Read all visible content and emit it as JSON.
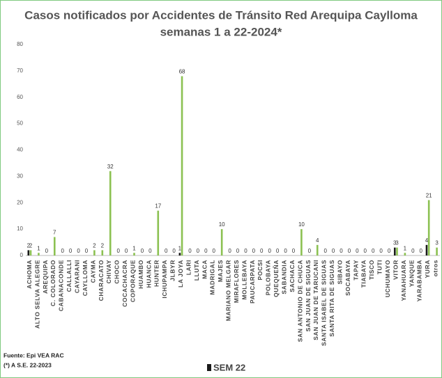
{
  "chart_data": {
    "type": "bar",
    "title": "Casos notificados  por Accidentes de Tránsito Red Arequipa Caylloma",
    "subtitle": "semanas 1 a 22-2024*",
    "source": "Fuente: Epi VEA RAC",
    "footnote": "(*) A S.E. 22-2023",
    "categories": [
      "ACHOMA",
      "ALTO SELVA ALEGRE",
      "AREQUIPA",
      "C. COLORADO",
      "CABANACONDE",
      "CALLALLI",
      "CAYARANI",
      "CAYLLOMA",
      "CAYMA",
      "CHARACATO",
      "CHIVAY",
      "CHOCO",
      "COCACHACRA",
      "COPORAQUE",
      "HUAMBO",
      "HUANCA",
      "HUNTER",
      "ICHUPAMPA",
      "JLBYR",
      "LA JOYA",
      "LARI",
      "LLUTA",
      "MACA",
      "MADRIGAL",
      "MAJES",
      "MARIANO MELGAR",
      "MIRAFLORES",
      "MOLLEBAYA",
      "PAUCARPATA",
      "POCSI",
      "POLOBAYA",
      "QUEQUEÑA",
      "SABANDIA",
      "SACHACA",
      "SAN ANTONIO DE CHUCA",
      "SAN JUAN DE SIGUAS",
      "SAN JUAN DE TARUCANI",
      "SANTA ISABEL DE SIGUAS",
      "SANTA RITA DE SIGUAS",
      "SIBAYO",
      "SOCABAYA",
      "TAPAY",
      "TIABAYA",
      "TISCO",
      "TUTI",
      "UCHUMAYO",
      "VITOR",
      "YANAHUARA",
      "YANQUE",
      "YARABAMBA",
      "YURA",
      "otros"
    ],
    "series": [
      {
        "name": "SEM 22",
        "color": "#1a1a1a",
        "values": [
          2,
          null,
          null,
          null,
          null,
          null,
          null,
          null,
          null,
          null,
          null,
          null,
          null,
          null,
          null,
          null,
          null,
          null,
          null,
          1,
          null,
          null,
          null,
          null,
          null,
          null,
          null,
          null,
          null,
          null,
          null,
          null,
          null,
          null,
          null,
          null,
          null,
          null,
          null,
          null,
          null,
          null,
          null,
          null,
          null,
          null,
          3,
          null,
          null,
          null,
          4,
          null
        ]
      },
      {
        "color": "#8cc152",
        "values": [
          2,
          1,
          0,
          7,
          0,
          0,
          0,
          0,
          2,
          2,
          32,
          0,
          0,
          1,
          0,
          0,
          17,
          0,
          0,
          68,
          0,
          0,
          0,
          0,
          10,
          0,
          0,
          0,
          0,
          0,
          0,
          0,
          0,
          0,
          10,
          0,
          4,
          0,
          0,
          0,
          0,
          0,
          0,
          0,
          0,
          0,
          3,
          1,
          0,
          0,
          21,
          3
        ]
      }
    ],
    "ylim": [
      0,
      80
    ],
    "yticks": [
      0,
      10,
      20,
      30,
      40,
      50,
      60,
      70,
      80
    ],
    "grid": false
  }
}
